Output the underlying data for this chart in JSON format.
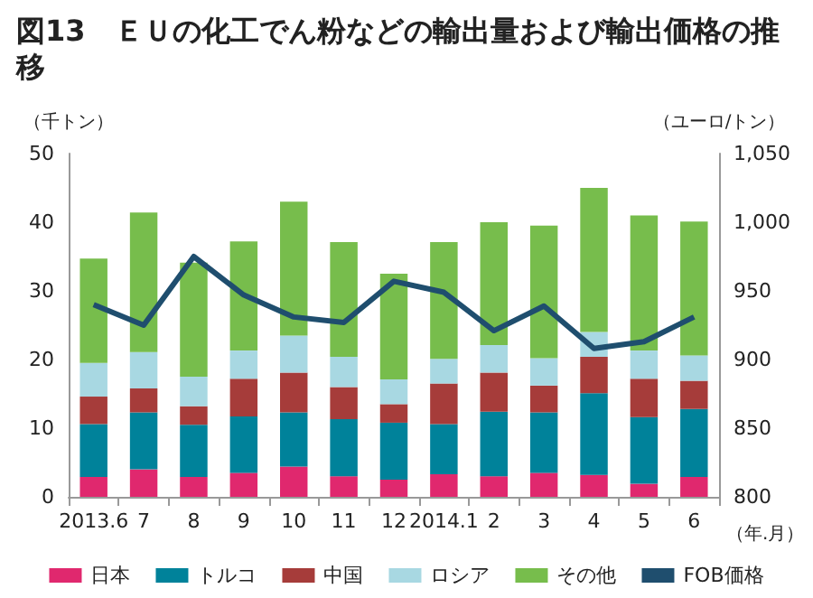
{
  "chart_data": {
    "type": "bar",
    "title": "図13　ＥＵの化工でん粉などの輸出量および輸出価格の推移",
    "ylabel": "（千トン）",
    "y2label": "（ユーロ/トン）",
    "xlabel": "（年.月）",
    "categories": [
      "2013.6",
      "7",
      "8",
      "9",
      "10",
      "11",
      "12",
      "2014.1",
      "2",
      "3",
      "4",
      "5",
      "6"
    ],
    "stacked": true,
    "series": [
      {
        "name": "日本",
        "color": "#e0286e",
        "values": [
          2.9,
          4.0,
          2.9,
          3.5,
          4.4,
          3.0,
          2.5,
          3.3,
          3.0,
          3.5,
          3.2,
          1.9,
          2.9
        ]
      },
      {
        "name": "トルコ",
        "color": "#00829a",
        "values": [
          7.7,
          8.3,
          7.6,
          8.2,
          7.9,
          8.3,
          8.3,
          7.3,
          9.4,
          8.8,
          11.9,
          9.7,
          9.9
        ]
      },
      {
        "name": "中国",
        "color": "#a63c3a",
        "values": [
          4.0,
          3.5,
          2.7,
          5.5,
          5.8,
          4.7,
          2.7,
          5.9,
          5.7,
          3.9,
          5.3,
          5.6,
          4.1
        ]
      },
      {
        "name": "ロシア",
        "color": "#a8d8e2",
        "values": [
          4.9,
          5.3,
          4.3,
          4.1,
          5.4,
          4.4,
          3.6,
          3.6,
          4.0,
          4.0,
          3.6,
          4.1,
          3.7
        ]
      },
      {
        "name": "その他",
        "color": "#77bd4c",
        "values": [
          15.2,
          20.3,
          16.6,
          15.9,
          19.5,
          16.7,
          15.4,
          17.0,
          17.9,
          19.3,
          21.0,
          19.7,
          19.5
        ]
      },
      {
        "name": "FOB価格",
        "type": "line",
        "axis": "y2",
        "color": "#1f4e6e",
        "marker": "none",
        "line_style": "solid",
        "values": [
          940,
          925,
          975,
          947,
          931,
          927,
          957,
          949,
          921,
          939,
          908,
          913,
          931
        ]
      }
    ],
    "ylim": [
      0,
      50
    ],
    "yticks": [
      0,
      10,
      20,
      30,
      40,
      50
    ],
    "y2lim": [
      800,
      1050
    ],
    "y2ticks": [
      800,
      850,
      900,
      950,
      {
        "value": 1000,
        "label": "1,000"
      },
      {
        "value": 1050,
        "label": "1,050"
      }
    ],
    "grid": false,
    "legend": "bottom"
  }
}
